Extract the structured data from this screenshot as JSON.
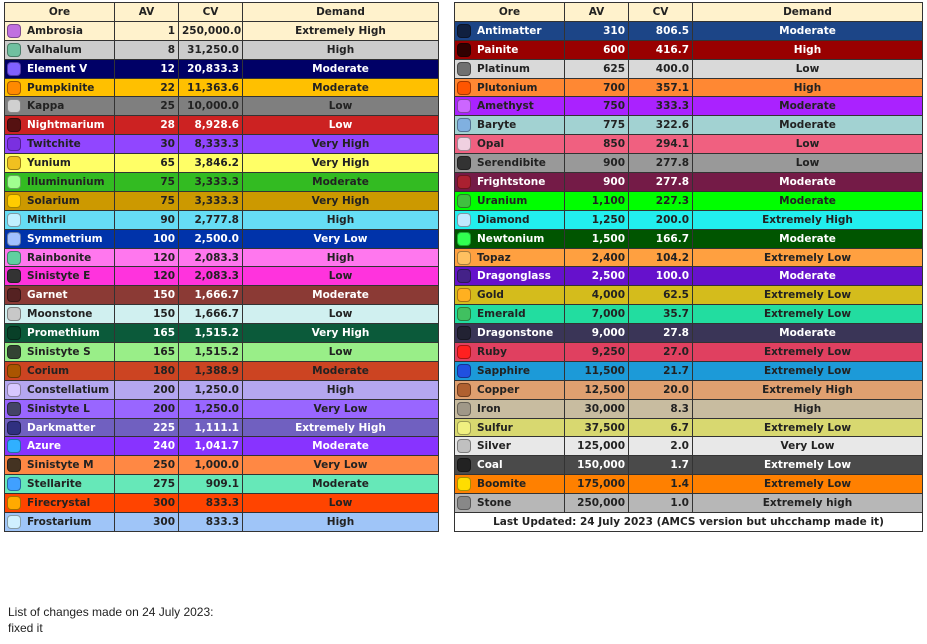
{
  "headers": {
    "ore": "Ore",
    "av": "AV",
    "cv": "CV",
    "demand": "Demand"
  },
  "left_table": [
    {
      "ore": "Ambrosia",
      "av": "1",
      "cv": "250,000.0",
      "demand": "Extremely High",
      "bg": "#fff2cc",
      "fg": "#222222",
      "icon_color": "#c070e0"
    },
    {
      "ore": "Valhalum",
      "av": "8",
      "cv": "31,250.0",
      "demand": "High",
      "bg": "#cccccc",
      "fg": "#222222",
      "icon_color": "#70c0a0"
    },
    {
      "ore": "Element V",
      "av": "12",
      "cv": "20,833.3",
      "demand": "Moderate",
      "bg": "#000066",
      "fg": "#ffffff",
      "icon_color": "#8060ff"
    },
    {
      "ore": "Pumpkinite",
      "av": "22",
      "cv": "11,363.6",
      "demand": "Moderate",
      "bg": "#ffc000",
      "fg": "#222222",
      "icon_color": "#ff8a00"
    },
    {
      "ore": "Kappa",
      "av": "25",
      "cv": "10,000.0",
      "demand": "Low",
      "bg": "#7f7f7f",
      "fg": "#222222",
      "icon_color": "#d0d0d0"
    },
    {
      "ore": "Nightmarium",
      "av": "28",
      "cv": "8,928.6",
      "demand": "Low",
      "bg": "#cc2222",
      "fg": "#ffffff",
      "icon_color": "#551111"
    },
    {
      "ore": "Twitchite",
      "av": "30",
      "cv": "8,333.3",
      "demand": "Very High",
      "bg": "#9146ff",
      "fg": "#222222",
      "icon_color": "#7a30e0"
    },
    {
      "ore": "Yunium",
      "av": "65",
      "cv": "3,846.2",
      "demand": "Very High",
      "bg": "#ffff66",
      "fg": "#222222",
      "icon_color": "#f0c020"
    },
    {
      "ore": "Illuminunium",
      "av": "75",
      "cv": "3,333.3",
      "demand": "Moderate",
      "bg": "#33bb22",
      "fg": "#222222",
      "icon_color": "#a0ff90"
    },
    {
      "ore": "Solarium",
      "av": "75",
      "cv": "3,333.3",
      "demand": "Very High",
      "bg": "#cc9900",
      "fg": "#222222",
      "icon_color": "#ffcc00"
    },
    {
      "ore": "Mithril",
      "av": "90",
      "cv": "2,777.8",
      "demand": "High",
      "bg": "#66ddf5",
      "fg": "#222222",
      "icon_color": "#c0f0ff"
    },
    {
      "ore": "Symmetrium",
      "av": "100",
      "cv": "2,500.0",
      "demand": "Very Low",
      "bg": "#0033aa",
      "fg": "#ffffff",
      "icon_color": "#a0c0ff"
    },
    {
      "ore": "Rainbonite",
      "av": "120",
      "cv": "2,083.3",
      "demand": "High",
      "bg": "#ff77ee",
      "fg": "#222222",
      "icon_color": "#60d0a0"
    },
    {
      "ore": "Sinistyte E",
      "av": "120",
      "cv": "2,083.3",
      "demand": "Low",
      "bg": "#ff33dd",
      "fg": "#222222",
      "icon_color": "#333333"
    },
    {
      "ore": "Garnet",
      "av": "150",
      "cv": "1,666.7",
      "demand": "Moderate",
      "bg": "#8b3a35",
      "fg": "#ffffff",
      "icon_color": "#552222"
    },
    {
      "ore": "Moonstone",
      "av": "150",
      "cv": "1,666.7",
      "demand": "Low",
      "bg": "#d0f0f0",
      "fg": "#222222",
      "icon_color": "#c8c8c8"
    },
    {
      "ore": "Promethium",
      "av": "165",
      "cv": "1,515.2",
      "demand": "Very High",
      "bg": "#0b5a3a",
      "fg": "#ffffff",
      "icon_color": "#084028"
    },
    {
      "ore": "Sinistyte S",
      "av": "165",
      "cv": "1,515.2",
      "demand": "Low",
      "bg": "#99ee88",
      "fg": "#222222",
      "icon_color": "#334433"
    },
    {
      "ore": "Corium",
      "av": "180",
      "cv": "1,388.9",
      "demand": "Moderate",
      "bg": "#cc4422",
      "fg": "#222222",
      "icon_color": "#aa5500"
    },
    {
      "ore": "Constellatium",
      "av": "200",
      "cv": "1,250.0",
      "demand": "High",
      "bg": "#b4a7f0",
      "fg": "#222222",
      "icon_color": "#d8c8ff"
    },
    {
      "ore": "Sinistyte L",
      "av": "200",
      "cv": "1,250.0",
      "demand": "Very Low",
      "bg": "#9966ff",
      "fg": "#222222",
      "icon_color": "#444466"
    },
    {
      "ore": "Darkmatter",
      "av": "225",
      "cv": "1,111.1",
      "demand": "Extremely High",
      "bg": "#7060c0",
      "fg": "#ffffff",
      "icon_color": "#303080"
    },
    {
      "ore": "Azure",
      "av": "240",
      "cv": "1,041.7",
      "demand": "Moderate",
      "bg": "#8833ff",
      "fg": "#ffffff",
      "icon_color": "#30b0ff"
    },
    {
      "ore": "Sinistyte M",
      "av": "250",
      "cv": "1,000.0",
      "demand": "Very Low",
      "bg": "#ff8844",
      "fg": "#222222",
      "icon_color": "#443322"
    },
    {
      "ore": "Stellarite",
      "av": "275",
      "cv": "909.1",
      "demand": "Moderate",
      "bg": "#66e8b8",
      "fg": "#222222",
      "icon_color": "#40a0ff"
    },
    {
      "ore": "Firecrystal",
      "av": "300",
      "cv": "833.3",
      "demand": "Low",
      "bg": "#ff4400",
      "fg": "#222222",
      "icon_color": "#ffaa00"
    },
    {
      "ore": "Frostarium",
      "av": "300",
      "cv": "833.3",
      "demand": "High",
      "bg": "#9fc5f8",
      "fg": "#222222",
      "icon_color": "#d0f0ff"
    }
  ],
  "right_table": [
    {
      "ore": "Antimatter",
      "av": "310",
      "cv": "806.5",
      "demand": "Moderate",
      "bg": "#1c4587",
      "fg": "#ffffff",
      "icon_color": "#102040"
    },
    {
      "ore": "Painite",
      "av": "600",
      "cv": "416.7",
      "demand": "High",
      "bg": "#990000",
      "fg": "#ffffff",
      "icon_color": "#300000"
    },
    {
      "ore": "Platinum",
      "av": "625",
      "cv": "400.0",
      "demand": "Low",
      "bg": "#d9d9d9",
      "fg": "#222222",
      "icon_color": "#707070"
    },
    {
      "ore": "Plutonium",
      "av": "700",
      "cv": "357.1",
      "demand": "High",
      "bg": "#ff8833",
      "fg": "#222222",
      "icon_color": "#ff5500"
    },
    {
      "ore": "Amethyst",
      "av": "750",
      "cv": "333.3",
      "demand": "Moderate",
      "bg": "#aa22ff",
      "fg": "#222222",
      "icon_color": "#cc66ff"
    },
    {
      "ore": "Baryte",
      "av": "775",
      "cv": "322.6",
      "demand": "Moderate",
      "bg": "#a2d2d2",
      "fg": "#222222",
      "icon_color": "#80b0e0"
    },
    {
      "ore": "Opal",
      "av": "850",
      "cv": "294.1",
      "demand": "Low",
      "bg": "#f06080",
      "fg": "#222222",
      "icon_color": "#f0d0e0"
    },
    {
      "ore": "Serendibite",
      "av": "900",
      "cv": "277.8",
      "demand": "Low",
      "bg": "#999999",
      "fg": "#222222",
      "icon_color": "#333333"
    },
    {
      "ore": "Frightstone",
      "av": "900",
      "cv": "277.8",
      "demand": "Moderate",
      "bg": "#741b47",
      "fg": "#ffffff",
      "icon_color": "#aa2030"
    },
    {
      "ore": "Uranium",
      "av": "1,100",
      "cv": "227.3",
      "demand": "Moderate",
      "bg": "#00ff00",
      "fg": "#222222",
      "icon_color": "#40c040"
    },
    {
      "ore": "Diamond",
      "av": "1,250",
      "cv": "200.0",
      "demand": "Extremely High",
      "bg": "#22eeee",
      "fg": "#222222",
      "icon_color": "#c0e8ff"
    },
    {
      "ore": "Newtonium",
      "av": "1,500",
      "cv": "166.7",
      "demand": "Moderate",
      "bg": "#005500",
      "fg": "#ffffff",
      "icon_color": "#30ff50"
    },
    {
      "ore": "Topaz",
      "av": "2,400",
      "cv": "104.2",
      "demand": "Extremely Low",
      "bg": "#ffa040",
      "fg": "#222222",
      "icon_color": "#ffc060"
    },
    {
      "ore": "Dragonglass",
      "av": "2,500",
      "cv": "100.0",
      "demand": "Moderate",
      "bg": "#6611cc",
      "fg": "#ffffff",
      "icon_color": "#442288"
    },
    {
      "ore": "Gold",
      "av": "4,000",
      "cv": "62.5",
      "demand": "Extremely Low",
      "bg": "#d4bc1c",
      "fg": "#222222",
      "icon_color": "#ffb020"
    },
    {
      "ore": "Emerald",
      "av": "7,000",
      "cv": "35.7",
      "demand": "Extremely Low",
      "bg": "#22dda0",
      "fg": "#222222",
      "icon_color": "#40c060"
    },
    {
      "ore": "Dragonstone",
      "av": "9,000",
      "cv": "27.8",
      "demand": "Moderate",
      "bg": "#3a3557",
      "fg": "#ffffff",
      "icon_color": "#222233"
    },
    {
      "ore": "Ruby",
      "av": "9,250",
      "cv": "27.0",
      "demand": "Extremely Low",
      "bg": "#e04060",
      "fg": "#222222",
      "icon_color": "#ff2020"
    },
    {
      "ore": "Sapphire",
      "av": "11,500",
      "cv": "21.7",
      "demand": "Extremely Low",
      "bg": "#1c9ad8",
      "fg": "#222222",
      "icon_color": "#2050e0"
    },
    {
      "ore": "Copper",
      "av": "12,500",
      "cv": "20.0",
      "demand": "Extremely High",
      "bg": "#e0a070",
      "fg": "#222222",
      "icon_color": "#b06030"
    },
    {
      "ore": "Iron",
      "av": "30,000",
      "cv": "8.3",
      "demand": "High",
      "bg": "#c8bca0",
      "fg": "#222222",
      "icon_color": "#a09888"
    },
    {
      "ore": "Sulfur",
      "av": "37,500",
      "cv": "6.7",
      "demand": "Extremely Low",
      "bg": "#d8d870",
      "fg": "#222222",
      "icon_color": "#f0f080"
    },
    {
      "ore": "Silver",
      "av": "125,000",
      "cv": "2.0",
      "demand": "Very Low",
      "bg": "#e8e8e8",
      "fg": "#222222",
      "icon_color": "#c0c0c0"
    },
    {
      "ore": "Coal",
      "av": "150,000",
      "cv": "1.7",
      "demand": "Extremely Low",
      "bg": "#4a4a4a",
      "fg": "#ffffff",
      "icon_color": "#222222"
    },
    {
      "ore": "Boomite",
      "av": "175,000",
      "cv": "1.4",
      "demand": "Extremely Low",
      "bg": "#ff8000",
      "fg": "#222222",
      "icon_color": "#ffdd00"
    },
    {
      "ore": "Stone",
      "av": "250,000",
      "cv": "1.0",
      "demand": "Extremely high",
      "bg": "#b7b7b7",
      "fg": "#222222",
      "icon_color": "#888888"
    }
  ],
  "footer": "Last Updated: 24 July 2023 (AMCS version but uhcchamp made it)",
  "notes": {
    "title": "List of changes made on 24 July 2023:",
    "lines": [
      "fixed it"
    ]
  }
}
